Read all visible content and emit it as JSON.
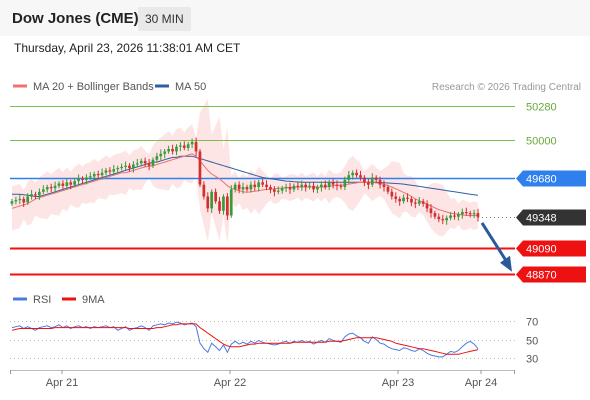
{
  "header": {
    "title": "Dow Jones (CME)",
    "timeframe": "30 MIN",
    "datetime": "Thursday, April 23, 2026 11:38:01 AM CET"
  },
  "legend": {
    "ma20_bb": "MA 20 + Bollinger Bands",
    "ma50": "MA 50",
    "source": "Research © 2026 Trading Central"
  },
  "rsi_legend": {
    "rsi": "RSI",
    "ma9": "9MA"
  },
  "colors": {
    "up_candle": "#3a9a3a",
    "down_candle": "#d03030",
    "ma20": "#f07070",
    "ma50": "#2e5fa0",
    "band_fill": "#fde0e0",
    "resistance_line": "#7cc04a",
    "support_line": "#ee1111",
    "pivot": "#2f80ed",
    "arrow": "#2a5a9a",
    "last_price": "#333333"
  },
  "chart_data": [
    {
      "type": "candlestick",
      "ylim": [
        48800,
        50350
      ],
      "x_ticks": [
        "Apr 21",
        "Apr 22",
        "Apr 23",
        "Apr 24"
      ],
      "levels": [
        {
          "label": "50280",
          "value": 50280,
          "kind": "resistance"
        },
        {
          "label": "50000",
          "value": 50000,
          "kind": "resistance"
        },
        {
          "label": "49680",
          "value": 49680,
          "kind": "pivot"
        },
        {
          "label": "49348",
          "value": 49348,
          "kind": "last"
        },
        {
          "label": "49090",
          "value": 49090,
          "kind": "support"
        },
        {
          "label": "48870",
          "value": 48870,
          "kind": "support"
        }
      ],
      "close": [
        49480,
        49490,
        49500,
        49470,
        49520,
        49540,
        49530,
        49560,
        49580,
        49600,
        49590,
        49610,
        49630,
        49610,
        49640,
        49620,
        49650,
        49670,
        49660,
        49680,
        49690,
        49710,
        49700,
        49720,
        49740,
        49730,
        49750,
        49760,
        49770,
        49780,
        49760,
        49790,
        49800,
        49820,
        49800,
        49780,
        49830,
        49860,
        49880,
        49900,
        49920,
        49900,
        49940,
        49950,
        49930,
        49960,
        49980,
        49900,
        49620,
        49520,
        49420,
        49560,
        49480,
        49400,
        49520,
        49360,
        49580,
        49620,
        49580,
        49600,
        49580,
        49620,
        49600,
        49640,
        49620,
        49600,
        49580,
        49560,
        49570,
        49590,
        49600,
        49580,
        49610,
        49600,
        49620,
        49600,
        49610,
        49580,
        49600,
        49620,
        49600,
        49640,
        49620,
        49610,
        49600,
        49660,
        49700,
        49720,
        49700,
        49680,
        49640,
        49620,
        49680,
        49660,
        49620,
        49600,
        49560,
        49520,
        49500,
        49480,
        49510,
        49500,
        49470,
        49460,
        49480,
        49460,
        49420,
        49380,
        49350,
        49330,
        49320,
        49340,
        49360,
        49350,
        49370,
        49390,
        49380,
        49370,
        49380,
        49348
      ],
      "ma20": [
        49420,
        49430,
        49440,
        49450,
        49460,
        49480,
        49500,
        49510,
        49520,
        49530,
        49540,
        49550,
        49560,
        49570,
        49580,
        49590,
        49600,
        49610,
        49620,
        49630,
        49640,
        49650,
        49660,
        49670,
        49680,
        49690,
        49700,
        49710,
        49720,
        49720,
        49730,
        49740,
        49750,
        49760,
        49770,
        49775,
        49780,
        49790,
        49800,
        49810,
        49820,
        49830,
        49840,
        49850,
        49860,
        49870,
        49880,
        49860,
        49820,
        49780,
        49740,
        49710,
        49690,
        49670,
        49640,
        49610,
        49590,
        49580,
        49570,
        49560,
        49555,
        49560,
        49565,
        49570,
        49575,
        49580,
        49580,
        49585,
        49590,
        49590,
        49595,
        49595,
        49600,
        49600,
        49600,
        49600,
        49600,
        49600,
        49600,
        49600,
        49600,
        49605,
        49610,
        49615,
        49615,
        49620,
        49625,
        49630,
        49635,
        49640,
        49642,
        49640,
        49638,
        49635,
        49630,
        49625,
        49610,
        49600,
        49585,
        49570,
        49555,
        49540,
        49520,
        49500,
        49485,
        49470,
        49455,
        49440,
        49425,
        49410,
        49400,
        49390,
        49380,
        49375,
        49370,
        49365,
        49360,
        49360,
        49360,
        49360
      ],
      "ma50": [
        49540,
        49540,
        49540,
        49535,
        49530,
        49525,
        49520,
        49520,
        49530,
        49540,
        49550,
        49560,
        49570,
        49580,
        49590,
        49600,
        49610,
        49620,
        49630,
        49640,
        49650,
        49660,
        49670,
        49680,
        49690,
        49700,
        49710,
        49720,
        49730,
        49740,
        49750,
        49760,
        49770,
        49780,
        49790,
        49800,
        49810,
        49810,
        49820,
        49830,
        49840,
        49850,
        49850,
        49860,
        49860,
        49860,
        49860,
        49850,
        49840,
        49830,
        49820,
        49810,
        49800,
        49790,
        49780,
        49770,
        49760,
        49750,
        49740,
        49730,
        49720,
        49710,
        49700,
        49690,
        49680,
        49675,
        49670,
        49665,
        49660,
        49655,
        49650,
        49648,
        49645,
        49642,
        49640,
        49640,
        49640,
        49640,
        49640,
        49640,
        49640,
        49640,
        49640,
        49640,
        49640,
        49640,
        49640,
        49640,
        49640,
        49640,
        49640,
        49640,
        49640,
        49640,
        49638,
        49636,
        49634,
        49632,
        49630,
        49628,
        49625,
        49620,
        49615,
        49610,
        49605,
        49600,
        49595,
        49590,
        49585,
        49580,
        49575,
        49570,
        49565,
        49560,
        49555,
        49550,
        49545,
        49540,
        49535,
        49530
      ],
      "forecast": {
        "from": 49348,
        "to": 48870
      }
    },
    {
      "type": "line",
      "name": "RSI",
      "ylim": [
        20,
        80
      ],
      "y_ticks": [
        30,
        50,
        70
      ],
      "rsi": [
        63,
        64,
        65,
        62,
        64,
        62,
        60,
        63,
        64,
        65,
        63,
        64,
        66,
        63,
        65,
        62,
        64,
        65,
        63,
        64,
        62,
        64,
        63,
        64,
        65,
        63,
        64,
        60,
        62,
        64,
        60,
        62,
        63,
        65,
        63,
        60,
        65,
        66,
        67,
        66,
        68,
        67,
        69,
        68,
        66,
        67,
        68,
        64,
        46,
        40,
        36,
        46,
        42,
        38,
        44,
        36,
        45,
        48,
        45,
        47,
        45,
        48,
        46,
        49,
        47,
        46,
        45,
        44,
        45,
        47,
        48,
        46,
        48,
        47,
        49,
        47,
        48,
        45,
        47,
        49,
        47,
        51,
        49,
        48,
        47,
        53,
        56,
        57,
        54,
        52,
        48,
        46,
        53,
        50,
        46,
        45,
        42,
        40,
        39,
        38,
        41,
        40,
        38,
        37,
        40,
        38,
        35,
        33,
        32,
        31,
        31,
        34,
        37,
        36,
        38,
        42,
        46,
        48,
        45,
        40
      ],
      "ma9": [
        60,
        61,
        62,
        62,
        62,
        62,
        62,
        62,
        62,
        62,
        62,
        63,
        63,
        63,
        63,
        63,
        63,
        63,
        63,
        63,
        63,
        63,
        63,
        63,
        63,
        63,
        63,
        63,
        63,
        63,
        62,
        62,
        62,
        62,
        62,
        62,
        62,
        63,
        63,
        64,
        65,
        66,
        66,
        67,
        67,
        67,
        67,
        67,
        63,
        60,
        57,
        54,
        51,
        48,
        45,
        43,
        42,
        42,
        42,
        43,
        44,
        45,
        45,
        46,
        46,
        46,
        46,
        46,
        46,
        46,
        46,
        46,
        47,
        47,
        47,
        47,
        47,
        47,
        47,
        47,
        47,
        48,
        48,
        48,
        48,
        49,
        50,
        51,
        52,
        52,
        52,
        52,
        52,
        52,
        51,
        50,
        49,
        48,
        46,
        45,
        44,
        43,
        42,
        41,
        40,
        40,
        39,
        38,
        37,
        36,
        35,
        34,
        34,
        34,
        34,
        35,
        36,
        37,
        38,
        39
      ]
    }
  ]
}
